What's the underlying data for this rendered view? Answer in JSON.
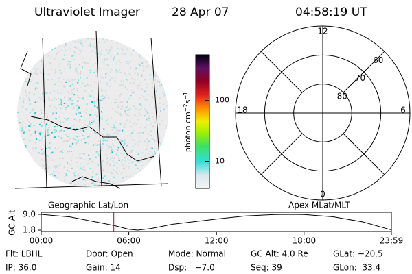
{
  "header": {
    "title": "Ultraviolet Imager",
    "date": "28 Apr 07",
    "time": "04:58:19 UT"
  },
  "map": {
    "label": "Geographic Lat/Lon"
  },
  "colorbar": {
    "label": [
      "photon cm",
      "−2",
      "s",
      "−1"
    ],
    "clim": [
      3.6,
      560
    ],
    "log": true,
    "ticks": [
      10,
      100
    ]
  },
  "polar": {
    "label": "Apex MLat/MLT",
    "rlim": [
      90,
      60
    ],
    "rings": [
      80,
      70,
      60
    ],
    "mlt": [
      12,
      18,
      6,
      0
    ]
  },
  "chart_data": {
    "type": "line",
    "ylabel": "GC Alt",
    "x": [
      0,
      2,
      4,
      5,
      6,
      6.6,
      7.5,
      9,
      12,
      14,
      16,
      17,
      18,
      20,
      22,
      23.98
    ],
    "values": [
      9.0,
      7.8,
      5.2,
      3.9,
      2.2,
      1.8,
      2.5,
      4.5,
      6.9,
      8.3,
      8.9,
      9.0,
      8.9,
      7.9,
      5.6,
      1.9
    ],
    "color": "#000000",
    "marker": 4.97,
    "marker_color": "#cc0000",
    "xlim": [
      0,
      23.98
    ],
    "ylim": [
      1.8,
      9.0
    ],
    "xticks": [
      {
        "value": 0,
        "label": "00:00"
      },
      {
        "value": 6,
        "label": "06:00"
      },
      {
        "value": 12,
        "label": "12:00"
      },
      {
        "value": 18,
        "label": "18:00"
      },
      {
        "value": 23.98,
        "label": "23:59"
      }
    ],
    "yticks": [
      {
        "value": 9.0,
        "label": "9.0"
      },
      {
        "value": 1.8,
        "label": "1.8"
      }
    ]
  },
  "status": [
    [
      "Flt: LBHL",
      "Door: Open",
      "Mode: Normal",
      "GC Alt: 4.0 Re",
      "GLat: −20.5"
    ],
    [
      "IP: 36.0",
      "Gain: 14",
      "Dsp:   −7.0",
      "Seq: 39",
      "GLon:  33.4"
    ]
  ]
}
